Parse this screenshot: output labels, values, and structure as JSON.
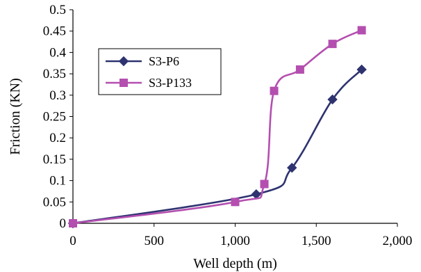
{
  "chart_data": {
    "type": "line",
    "title": "",
    "xlabel": "Well depth (m)",
    "ylabel": "Friction (KN)",
    "xlim": [
      0,
      2000
    ],
    "ylim": [
      0,
      0.5
    ],
    "xticks": [
      0,
      500,
      1000,
      1500,
      2000
    ],
    "xtick_labels": [
      "0",
      "500",
      "1,000",
      "1,500",
      "2,000"
    ],
    "yticks": [
      0,
      0.05,
      0.1,
      0.15,
      0.2,
      0.25,
      0.3,
      0.35,
      0.4,
      0.45,
      0.5
    ],
    "ytick_labels": [
      "0",
      "0.05",
      "0.1",
      "0.15",
      "0.2",
      "0.25",
      "0.3",
      "0.35",
      "0.4",
      "0.45",
      "0.5"
    ],
    "grid": false,
    "legend_position": "upper-left",
    "series": [
      {
        "name": "S3-P6",
        "color": "#2e3370",
        "marker": "diamond",
        "x": [
          0,
          1130,
          1350,
          1600,
          1780
        ],
        "y": [
          0,
          0.068,
          0.13,
          0.29,
          0.36
        ]
      },
      {
        "name": "S3-P133",
        "color": "#b44fb0",
        "marker": "square",
        "x": [
          0,
          1000,
          1180,
          1240,
          1400,
          1600,
          1780
        ],
        "y": [
          0,
          0.05,
          0.092,
          0.31,
          0.36,
          0.42,
          0.452
        ]
      }
    ]
  }
}
